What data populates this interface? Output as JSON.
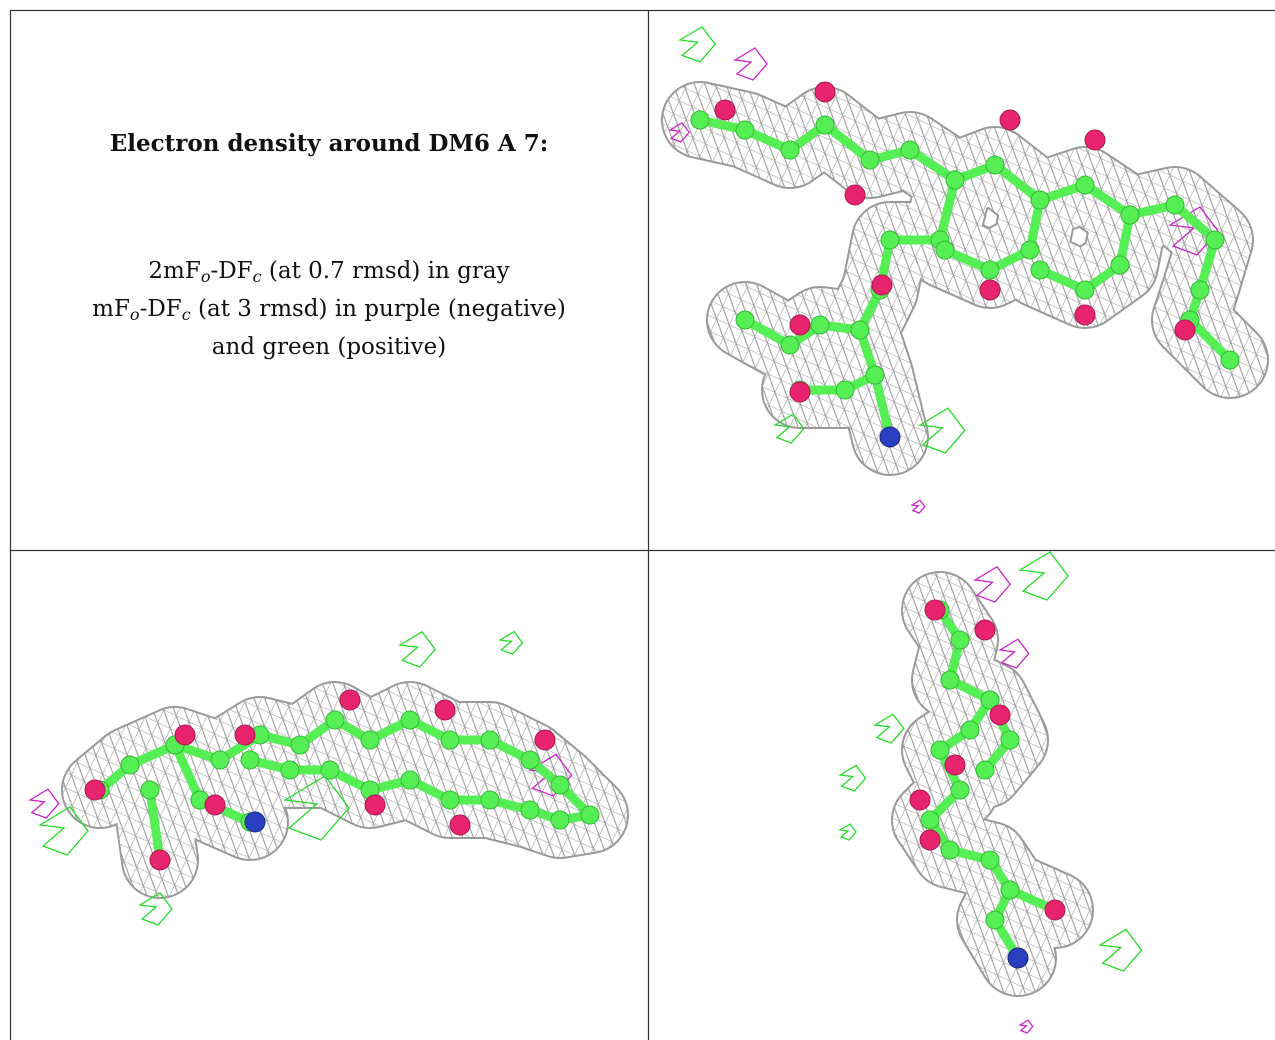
{
  "title": "Electron density around DM6 A 7:",
  "legend_lines": [
    [
      "2mF",
      "o",
      "-DF",
      "c",
      " (at 0.7 rmsd) in gray"
    ],
    [
      "mF",
      "o",
      "-DF",
      "c",
      " (at 3 rmsd) in purple (negative)"
    ],
    [
      "and green (positive)"
    ]
  ]
}
